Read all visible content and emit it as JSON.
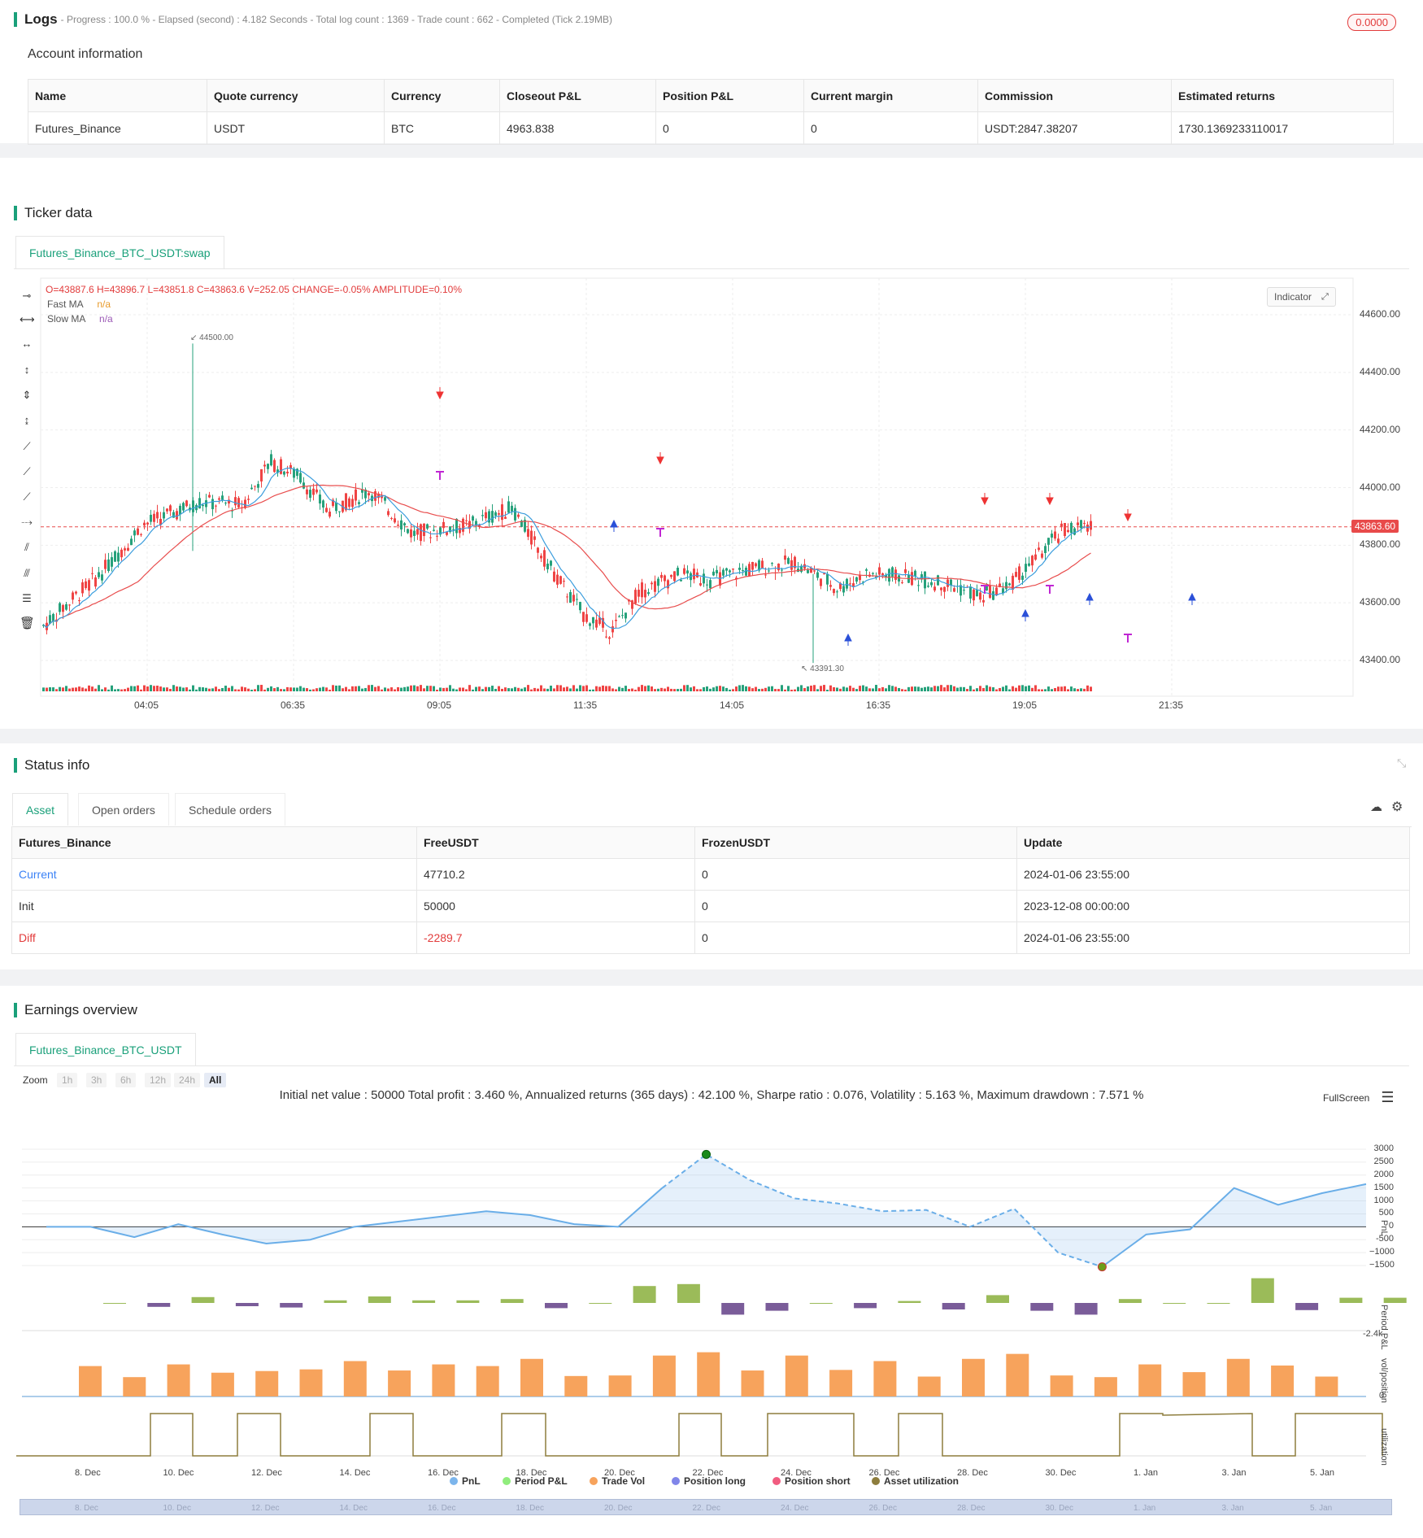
{
  "logs": {
    "title": "Logs",
    "subtitle": "- Progress : 100.0 % - Elapsed (second) : 4.182 Seconds - Total log count : 1369 - Trade count : 662 - Completed (Tick 2.19MB)",
    "badge": "0.0000",
    "account_title": "Account information",
    "headers": [
      "Name",
      "Quote currency",
      "Currency",
      "Closeout P&L",
      "Position P&L",
      "Current margin",
      "Commission",
      "Estimated returns"
    ],
    "row": [
      "Futures_Binance",
      "USDT",
      "BTC",
      "4963.838",
      "0",
      "0",
      "USDT:2847.38207",
      "1730.1369233110017"
    ]
  },
  "ticker": {
    "title": "Ticker data",
    "tab": "Futures_Binance_BTC_USDT:swap",
    "ohlc": "O=43887.6 H=43896.7 L=43851.8 C=43863.6 V=252.05 CHANGE=-0.05% AMPLITUDE=0.10%",
    "fast_ma": "Fast MA",
    "slow_ma": "Slow MA",
    "na": "n/a",
    "indicator_btn": "Indicator",
    "price_label": "43863.60",
    "high_label": "44500.00",
    "low_label": "43391.30",
    "y_ticks": [
      "44600.00",
      "44400.00",
      "44200.00",
      "44000.00",
      "43800.00",
      "43600.00",
      "43400.00"
    ],
    "x_ticks": [
      "04:05",
      "06:35",
      "09:05",
      "11:35",
      "14:05",
      "16:35",
      "19:05",
      "21:35"
    ],
    "colors": {
      "up": "#26a17b",
      "down": "#ef4444",
      "fast": "#3b9ddd",
      "slow": "#e84d4d",
      "signal_short": "#e33",
      "signal_close": "#c026d3",
      "signal_buy": "#2b50d8"
    }
  },
  "status": {
    "title": "Status info",
    "tabs": [
      "Asset",
      "Open orders",
      "Schedule orders"
    ],
    "headers": [
      "Futures_Binance",
      "FreeUSDT",
      "FrozenUSDT",
      "Update"
    ],
    "rows": [
      [
        "Current",
        "47710.2",
        "0",
        "2024-01-06 23:55:00"
      ],
      [
        "Init",
        "50000",
        "0",
        "2023-12-08 00:00:00"
      ],
      [
        "Diff",
        "-2289.7",
        "0",
        "2024-01-06 23:55:00"
      ]
    ]
  },
  "earnings": {
    "title": "Earnings overview",
    "tab": "Futures_Binance_BTC_USDT",
    "summary": "Initial net value : 50000 Total profit : 3.460 %, Annualized returns (365 days) : 42.100 %, Sharpe ratio : 0.076, Volatility : 5.163 %, Maximum drawdown : 7.571 %",
    "fullscreen": "FullScreen",
    "zoom_label": "Zoom",
    "zoom_buttons": [
      "1h",
      "3h",
      "6h",
      "12h",
      "24h",
      "All"
    ],
    "pnl_ticks": [
      "3000",
      "2500",
      "2000",
      "1500",
      "1000",
      "500",
      "0",
      "-500",
      "−1000",
      "−1500"
    ],
    "axis_titles": [
      "PnL",
      "Period P&L",
      "vol/position",
      "utilization"
    ],
    "period_tick": "-2.4k",
    "vol_tick": "0",
    "x_ticks": [
      "8. Dec",
      "10. Dec",
      "12. Dec",
      "14. Dec",
      "16. Dec",
      "18. Dec",
      "20. Dec",
      "22. Dec",
      "24. Dec",
      "26. Dec",
      "28. Dec",
      "30. Dec",
      "1. Jan",
      "3. Jan",
      "5. Jan"
    ],
    "legend": [
      {
        "label": "PnL",
        "color": "#7cb5ec"
      },
      {
        "label": "Period P&L",
        "color": "#90ed7d"
      },
      {
        "label": "Trade Vol",
        "color": "#f7a35c"
      },
      {
        "label": "Position long",
        "color": "#8085e9"
      },
      {
        "label": "Position short",
        "color": "#f15c80"
      },
      {
        "label": "Asset utilization",
        "color": "#8d7d3d"
      }
    ]
  },
  "chart_data": [
    {
      "type": "line",
      "title": "",
      "ylabel": "PnL",
      "ylim": [
        -1600,
        3100
      ],
      "x": [
        "7. Dec",
        "8. Dec",
        "9. Dec",
        "10. Dec",
        "11. Dec",
        "12. Dec",
        "13. Dec",
        "14. Dec",
        "15. Dec",
        "16. Dec",
        "17. Dec",
        "18. Dec",
        "19. Dec",
        "20. Dec",
        "21. Dec",
        "22. Dec",
        "23. Dec",
        "24. Dec",
        "25. Dec",
        "26. Dec",
        "27. Dec",
        "28. Dec",
        "29. Dec",
        "30. Dec",
        "31. Dec",
        "1. Jan",
        "2. Jan",
        "3. Jan",
        "4. Jan",
        "5. Jan",
        "6. Jan"
      ],
      "series": [
        {
          "name": "PnL",
          "values": [
            0,
            0,
            -400,
            100,
            -300,
            -650,
            -500,
            0,
            200,
            400,
            600,
            450,
            100,
            0,
            1500,
            2800,
            1800,
            1100,
            900,
            600,
            650,
            0,
            700,
            -1000,
            -1550,
            -300,
            -100,
            1500,
            850,
            1300,
            1650
          ]
        }
      ]
    },
    {
      "type": "bar",
      "ylabel": "Period P&L",
      "x": [
        "8. Dec",
        "9. Dec",
        "10. Dec",
        "11. Dec",
        "12. Dec",
        "13. Dec",
        "14. Dec",
        "15. Dec",
        "16. Dec",
        "17. Dec",
        "18. Dec",
        "19. Dec",
        "20. Dec",
        "21. Dec",
        "22. Dec",
        "23. Dec",
        "24. Dec",
        "25. Dec",
        "26. Dec",
        "27. Dec",
        "28. Dec",
        "29. Dec",
        "30. Dec",
        "31. Dec",
        "1. Jan",
        "2. Jan",
        "3. Jan",
        "4. Jan",
        "5. Jan",
        "6. Jan"
      ],
      "values": [
        0,
        -300,
        450,
        -250,
        -350,
        200,
        500,
        200,
        200,
        300,
        -400,
        0,
        1300,
        1450,
        -900,
        -600,
        0,
        -400,
        150,
        -500,
        600,
        -600,
        -900,
        300,
        0,
        0,
        1900,
        -550,
        400,
        400
      ]
    },
    {
      "type": "bar",
      "ylabel": "vol/position",
      "values": [
        55,
        35,
        58,
        43,
        46,
        49,
        64,
        47,
        58,
        55,
        68,
        37,
        38,
        74,
        80,
        47,
        74,
        48,
        64,
        36,
        68,
        77,
        38,
        35,
        58,
        44,
        68,
        56,
        36
      ]
    }
  ]
}
